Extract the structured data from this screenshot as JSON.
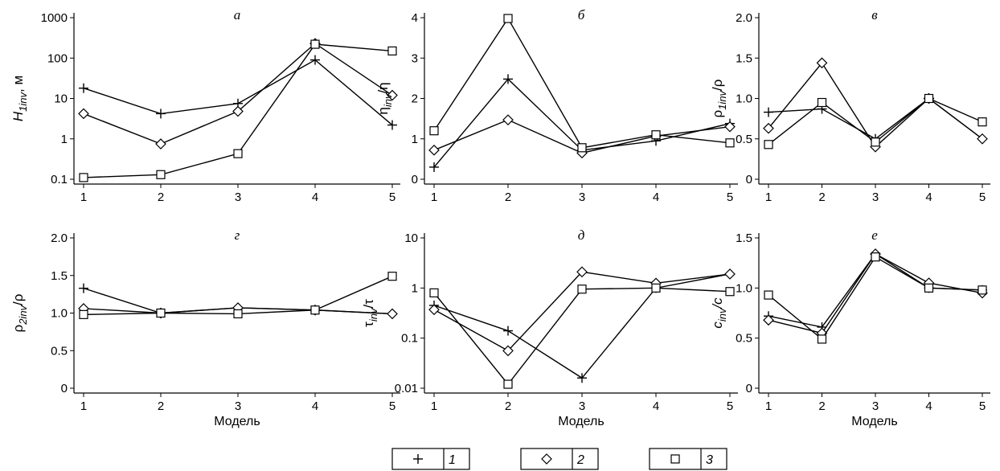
{
  "chart_data": [
    {
      "type": "line",
      "title": "а",
      "ylabel_parts": [
        "H",
        "1inv",
        ", м"
      ],
      "xlabel": "",
      "scale": "log",
      "ylim": [
        0.1,
        1000
      ],
      "yticks": [
        "0.1",
        "1",
        "10",
        "100",
        "1000"
      ],
      "ytick_values": [
        0.1,
        1,
        10,
        100,
        1000
      ],
      "x": [
        1,
        2,
        3,
        4,
        5
      ],
      "series": [
        {
          "name": "1",
          "marker": "plus",
          "values": [
            18,
            4.2,
            7.5,
            90,
            2.2
          ]
        },
        {
          "name": "2",
          "marker": "diamond",
          "values": [
            4.2,
            0.75,
            4.8,
            230,
            12
          ]
        },
        {
          "name": "3",
          "marker": "square",
          "values": [
            0.11,
            0.13,
            0.43,
            220,
            150
          ]
        }
      ]
    },
    {
      "type": "line",
      "title": "б",
      "ylabel_parts": [
        "η",
        "inv",
        "/η"
      ],
      "xlabel": "",
      "scale": "linear",
      "ylim": [
        0,
        4
      ],
      "yticks": [
        "0",
        "1",
        "2",
        "3",
        "4"
      ],
      "ytick_values": [
        0,
        1,
        2,
        3,
        4
      ],
      "x": [
        1,
        2,
        3,
        4,
        5
      ],
      "series": [
        {
          "name": "1",
          "marker": "plus",
          "values": [
            0.3,
            2.48,
            0.72,
            0.95,
            1.38
          ]
        },
        {
          "name": "2",
          "marker": "diamond",
          "values": [
            0.72,
            1.47,
            0.65,
            1.07,
            1.3
          ]
        },
        {
          "name": "3",
          "marker": "square",
          "values": [
            1.2,
            3.98,
            0.78,
            1.1,
            0.9
          ]
        }
      ]
    },
    {
      "type": "line",
      "title": "в",
      "ylabel_parts": [
        "ρ",
        "1inv",
        "/ρ"
      ],
      "xlabel": "",
      "scale": "linear",
      "ylim": [
        0,
        2.0
      ],
      "yticks": [
        "0",
        "0.5",
        "1.0",
        "1.5",
        "2.0"
      ],
      "ytick_values": [
        0,
        0.5,
        1.0,
        1.5,
        2.0
      ],
      "x": [
        1,
        2,
        3,
        4,
        5
      ],
      "series": [
        {
          "name": "1",
          "marker": "plus",
          "values": [
            0.83,
            0.87,
            0.5,
            1.0,
            0.5
          ]
        },
        {
          "name": "2",
          "marker": "diamond",
          "values": [
            0.63,
            1.44,
            0.4,
            1.0,
            0.5
          ]
        },
        {
          "name": "3",
          "marker": "square",
          "values": [
            0.43,
            0.95,
            0.46,
            1.0,
            0.71
          ]
        }
      ]
    },
    {
      "type": "line",
      "title": "г",
      "ylabel_parts": [
        "ρ",
        "2inv",
        "/ρ"
      ],
      "xlabel": "Модель",
      "scale": "linear",
      "ylim": [
        0,
        2.0
      ],
      "yticks": [
        "0",
        "0.5",
        "1.0",
        "1.5",
        "2.0"
      ],
      "ytick_values": [
        0,
        0.5,
        1.0,
        1.5,
        2.0
      ],
      "x": [
        1,
        2,
        3,
        4,
        5
      ],
      "series": [
        {
          "name": "1",
          "marker": "plus",
          "values": [
            1.33,
            1.0,
            1.07,
            1.04,
            0.99
          ]
        },
        {
          "name": "2",
          "marker": "diamond",
          "values": [
            1.06,
            1.0,
            1.07,
            1.04,
            0.99
          ]
        },
        {
          "name": "3",
          "marker": "square",
          "values": [
            0.98,
            1.0,
            0.99,
            1.04,
            1.49
          ]
        }
      ]
    },
    {
      "type": "line",
      "title": "д",
      "ylabel_parts": [
        "τ",
        "inv",
        "/τ"
      ],
      "xlabel": "Модель",
      "scale": "log",
      "ylim": [
        0.01,
        10
      ],
      "yticks": [
        "0.01",
        "0.1",
        "1",
        "10"
      ],
      "ytick_values": [
        0.01,
        0.1,
        1,
        10
      ],
      "x": [
        1,
        2,
        3,
        4,
        5
      ],
      "series": [
        {
          "name": "1",
          "marker": "plus",
          "values": [
            0.45,
            0.14,
            0.016,
            1.0,
            1.9
          ]
        },
        {
          "name": "2",
          "marker": "diamond",
          "values": [
            0.37,
            0.056,
            2.1,
            1.25,
            1.9
          ]
        },
        {
          "name": "3",
          "marker": "square",
          "values": [
            0.8,
            0.012,
            0.95,
            1.0,
            0.85
          ]
        }
      ]
    },
    {
      "type": "line",
      "title": "е",
      "ylabel_parts": [
        "c",
        "inv",
        "/c"
      ],
      "xlabel": "Модель",
      "scale": "linear",
      "ylim": [
        0,
        1.5
      ],
      "yticks": [
        "0",
        "0.5",
        "1.0",
        "1.5"
      ],
      "ytick_values": [
        0,
        0.5,
        1.0,
        1.5
      ],
      "x": [
        1,
        2,
        3,
        4,
        5
      ],
      "series": [
        {
          "name": "1",
          "marker": "plus",
          "values": [
            0.72,
            0.61,
            1.34,
            1.0,
            0.98
          ]
        },
        {
          "name": "2",
          "marker": "diamond",
          "values": [
            0.68,
            0.55,
            1.34,
            1.05,
            0.95
          ]
        },
        {
          "name": "3",
          "marker": "square",
          "values": [
            0.93,
            0.49,
            1.31,
            1.0,
            0.98
          ]
        }
      ]
    }
  ],
  "legend": {
    "placement": "bottom-center",
    "items": [
      {
        "label": "1",
        "marker": "plus"
      },
      {
        "label": "2",
        "marker": "diamond"
      },
      {
        "label": "3",
        "marker": "square"
      }
    ]
  }
}
